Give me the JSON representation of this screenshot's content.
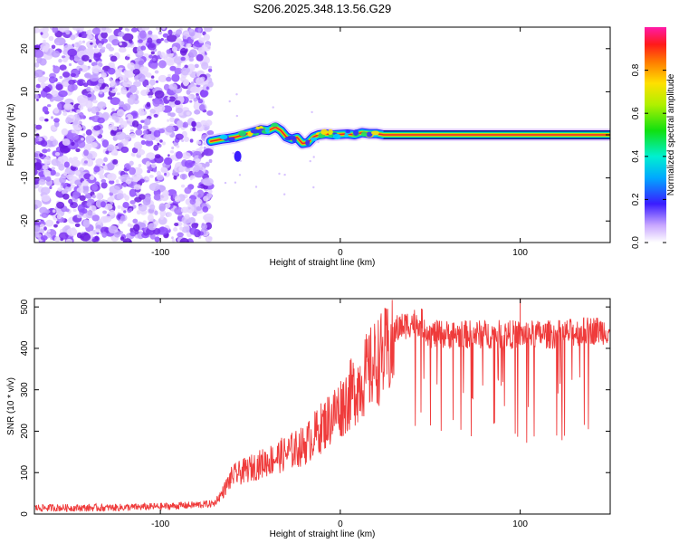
{
  "title": "S206.2025.348.13.56.G29",
  "colors": {
    "spectrogram_ridge": "#e8262d",
    "snr_line": "#ef3b3b",
    "axis": "#000000",
    "scatter": "#8b2be2"
  },
  "chart_data": [
    {
      "type": "heatmap",
      "name": "spectrogram",
      "xlabel": "Height of straight line (km)",
      "ylabel": "Frequency (Hz)",
      "xlim": [
        -170,
        150
      ],
      "ylim": [
        -25,
        25
      ],
      "xticks": [
        -100,
        0,
        100
      ],
      "yticks": [
        -20,
        -10,
        0,
        10,
        20
      ],
      "noise_region_x": [
        -170,
        -72
      ],
      "ridge": {
        "x": [
          -72,
          -66,
          -62,
          -58,
          -52,
          -47,
          -44,
          -40,
          -36,
          -33,
          -30,
          -27,
          -24,
          -21,
          -18,
          -15,
          -12,
          -8,
          -4,
          0,
          4,
          8,
          12,
          16,
          20,
          24,
          30,
          50,
          80,
          110,
          150
        ],
        "y": [
          -1.5,
          -1.0,
          -0.8,
          -0.5,
          0.2,
          0.8,
          1.2,
          1.0,
          1.8,
          1.0,
          -0.5,
          -1.0,
          -0.6,
          -2.0,
          -1.8,
          -0.5,
          0.0,
          0.2,
          0.0,
          0.1,
          0.2,
          0.0,
          0.5,
          0.3,
          0.3,
          0.0,
          0.0,
          0.0,
          0.0,
          0.0,
          0.0
        ]
      },
      "colorbar": {
        "label": "Normalized spectral amplitude",
        "ticks": [
          "0.0",
          "0.2",
          "0.4",
          "0.6",
          "0.8"
        ],
        "range": [
          0,
          1
        ]
      }
    },
    {
      "type": "line",
      "name": "snr",
      "xlabel": "Height of straight line (km)",
      "ylabel": "SNR (10 * v/v)",
      "xlim": [
        -170,
        150
      ],
      "ylim": [
        0,
        520
      ],
      "xticks": [
        -100,
        0,
        100
      ],
      "yticks": [
        0,
        100,
        200,
        300,
        400,
        500
      ],
      "envelope": {
        "x": [
          -170,
          -130,
          -100,
          -80,
          -70,
          -65,
          -60,
          -50,
          -40,
          -30,
          -20,
          -10,
          0,
          10,
          20,
          25,
          30,
          40,
          45,
          50,
          60,
          80,
          100,
          120,
          140,
          150
        ],
        "y": [
          15,
          15,
          18,
          22,
          25,
          60,
          100,
          120,
          140,
          160,
          180,
          230,
          280,
          340,
          400,
          420,
          440,
          460,
          460,
          430,
          430,
          430,
          430,
          430,
          440,
          440
        ]
      }
    }
  ]
}
